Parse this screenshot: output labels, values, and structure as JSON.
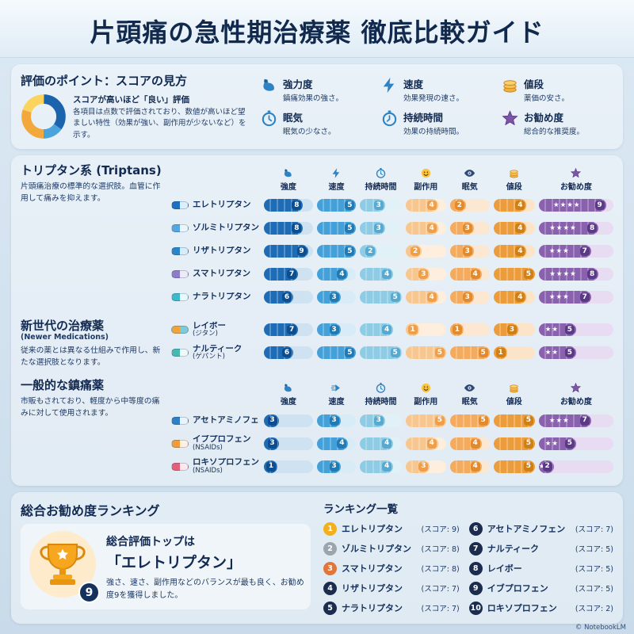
{
  "title": "片頭痛の急性期治療薬 徹底比較ガイド",
  "legend": {
    "heading": "評価のポイント：スコアの見方",
    "intro_bold": "スコアが高いほど「良い」評価",
    "intro_text": "各項目は点数で評価されており、数値が高いほど望ましい特性（効果が強い、副作用が少ないなど）を示す。",
    "items": [
      {
        "icon": "muscle-icon",
        "label": "強力度",
        "desc": "鎮痛効果の強さ。"
      },
      {
        "icon": "lightning-icon",
        "label": "速度",
        "desc": "効果発現の速さ。"
      },
      {
        "icon": "coins-icon",
        "label": "値段",
        "desc": "薬価の安さ。"
      },
      {
        "icon": "stopwatch-icon",
        "label": "眠気",
        "desc": "眠気の少なさ。"
      },
      {
        "icon": "timer-icon",
        "label": "持続時間",
        "desc": "効果の持続時間。"
      },
      {
        "icon": "star-icon",
        "label": "お勧め度",
        "desc": "総合的な推奨度。"
      }
    ]
  },
  "chart_data": {
    "type": "bar",
    "metrics": [
      "強度",
      "速度",
      "持続時間",
      "副作用",
      "眠気",
      "値段",
      "お勧め度"
    ],
    "value_range": [
      0,
      10
    ],
    "columns": [
      {
        "label": "強度",
        "icon": "muscle-icon",
        "max": 10,
        "fill": "#1e6cb5",
        "badge": "#0c4e8f",
        "track": "#cfe2f1"
      },
      {
        "label": "速度",
        "icon": "lightning-icon",
        "icon2": "speed-arrow-icon",
        "max": 5,
        "fill": "#44a0d8",
        "badge": "#2379b2",
        "track": "#d8ecf8"
      },
      {
        "label": "持続時間",
        "icon": "stopwatch-icon",
        "max": 5,
        "fill": "#8ecbe4",
        "badge": "#57a9cf",
        "track": "#e0f1f8"
      },
      {
        "label": "副作用",
        "icon": "smiley-icon",
        "max": 5,
        "fill": "#f8c78f",
        "badge": "#ef9f4a",
        "track": "#fdeedd"
      },
      {
        "label": "眠気",
        "icon": "eye-icon",
        "max": 5,
        "fill": "#f4ab5e",
        "badge": "#e18a2e",
        "track": "#fce8d2"
      },
      {
        "label": "値段",
        "icon": "coins-icon",
        "max": 5,
        "fill": "#ec9c3a",
        "badge": "#d07f14",
        "track": "#fbe4c8"
      }
    ],
    "recommend_column": {
      "label": "お勧め度",
      "icon": "star-icon",
      "max": 10,
      "fill": "#8a61ae",
      "badge": "#5a3a86",
      "track": "#e7dcf1"
    },
    "sections": [
      {
        "heading": "トリプタン系 (Triptans)",
        "desc": "片頭痛治療の標準的な選択肢。血管に作用して痛みを抑えます。",
        "show_header": true,
        "header_icon_set": 1,
        "rows": [
          {
            "name": "エレトリプタン",
            "pill": [
              "#1f6fc0",
              "#ddeefb"
            ],
            "values": [
              8,
              5,
              3,
              4,
              2,
              4
            ],
            "stars": "★★★★",
            "score": 9
          },
          {
            "name": "ゾルミトリプタン",
            "pill": [
              "#57a7de",
              "#eaf5fc"
            ],
            "values": [
              8,
              5,
              3,
              4,
              3,
              4
            ],
            "stars": "★★★★",
            "score": 8
          },
          {
            "name": "リザトリプタン",
            "pill": [
              "#2a85c8",
              "#d7ecf8"
            ],
            "values": [
              9,
              5,
              2,
              2,
              3,
              4
            ],
            "stars": "★★★",
            "score": 7
          },
          {
            "name": "スマトリプタン",
            "pill": [
              "#8f7cc9",
              "#efeaf8"
            ],
            "values": [
              7,
              4,
              4,
              3,
              4,
              5
            ],
            "stars": "★★★★",
            "score": 8
          },
          {
            "name": "ナラトリプタン",
            "pill": [
              "#3fb8c9",
              "#e9f8fa"
            ],
            "values": [
              6,
              3,
              5,
              4,
              3,
              4
            ],
            "stars": "★★★",
            "score": 7
          }
        ]
      },
      {
        "heading": "新世代の治療薬",
        "heading_sub": "(Newer Medications)",
        "desc": "従来の薬とは異なる仕組みで作用し、新たな選択肢となります。",
        "show_header": false,
        "rows": [
          {
            "name": "レイボー",
            "name2": "(ジタン)",
            "pill": [
              "#f0a53c",
              "#7ecad6"
            ],
            "values": [
              7,
              3,
              4,
              1,
              1,
              3
            ],
            "stars": "★★",
            "score": 5
          },
          {
            "name": "ナルティーク",
            "name2": "(ゲパント)",
            "pill": [
              "#49b9b0",
              "#eef9f8"
            ],
            "values": [
              6,
              5,
              5,
              5,
              5,
              1
            ],
            "stars": "★★",
            "score": 5
          }
        ]
      },
      {
        "heading": "一般的な鎮痛薬",
        "desc": "市販もされており、軽度から中等度の痛みに対して使用されます。",
        "show_header": true,
        "header_icon_set": 2,
        "rows": [
          {
            "name": "アセトアミノフェン",
            "pill": [
              "#2f7fc4",
              "#e9f3fb"
            ],
            "values": [
              3,
              3,
              3,
              5,
              5,
              5
            ],
            "stars": "★★★",
            "score": 7
          },
          {
            "name": "イブプロフェン",
            "name2": "(NSAIDs)",
            "pill": [
              "#ef9b3e",
              "#fdf1e2"
            ],
            "values": [
              3,
              4,
              4,
              4,
              4,
              5
            ],
            "stars": "★★",
            "score": 5
          },
          {
            "name": "ロキソプロフェン",
            "name2": "(NSAIDs)",
            "pill": [
              "#e4607a",
              "#fbe9ed"
            ],
            "values": [
              1,
              3,
              4,
              3,
              4,
              5
            ],
            "stars": "★",
            "score": 2
          }
        ]
      }
    ]
  },
  "ranking": {
    "heading": "総合お勧め度ランキング",
    "top_label": "総合評価トップは",
    "top_name": "「エレトリプタン」",
    "top_desc": "強さ、速さ、副作用などのバランスが最も良く、お勧め度9を獲得しました。",
    "trophy_score": "9",
    "list_heading": "ランキング一覧",
    "items": [
      {
        "rank": "1",
        "name": "エレトリプタン",
        "score": "(スコア: 9)",
        "badge": "#f2b01e"
      },
      {
        "rank": "2",
        "name": "ゾルミトリプタン",
        "score": "(スコア: 8)",
        "badge": "#9aa5ae"
      },
      {
        "rank": "3",
        "name": "スマトリプタン",
        "score": "(スコア: 8)",
        "badge": "#e0763a"
      },
      {
        "rank": "4",
        "name": "リザトリプタン",
        "score": "(スコア: 7)",
        "badge": "#1c2c4e"
      },
      {
        "rank": "5",
        "name": "ナラトリプタン",
        "score": "(スコア: 7)",
        "badge": "#1c2c4e"
      },
      {
        "rank": "6",
        "name": "アセトアミノフェン",
        "score": "(スコア: 7)",
        "badge": "#1c2c4e"
      },
      {
        "rank": "7",
        "name": "ナルティーク",
        "score": "(スコア: 5)",
        "badge": "#1c2c4e"
      },
      {
        "rank": "8",
        "name": "レイボー",
        "score": "(スコア: 5)",
        "badge": "#1c2c4e"
      },
      {
        "rank": "9",
        "name": "イブプロフェン",
        "score": "(スコア: 5)",
        "badge": "#1c2c4e"
      },
      {
        "rank": "10",
        "name": "ロキソプロフェン",
        "score": "(スコア: 2)",
        "badge": "#1c2c4e"
      }
    ]
  },
  "footer": "© NotebookLM"
}
